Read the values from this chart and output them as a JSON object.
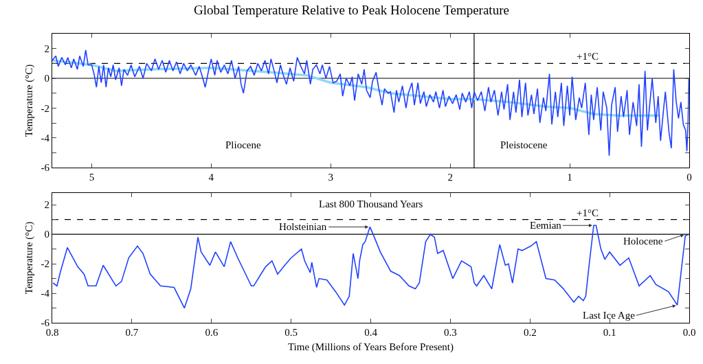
{
  "chart_data": [
    {
      "type": "line",
      "title": "Global Temperature Relative to Peak Holocene Temperature",
      "ylabel": "Temperature (°C)",
      "xlim": [
        5.33,
        0
      ],
      "xticks": [
        5,
        4,
        3,
        2,
        1,
        0
      ],
      "ylim": [
        -6,
        3
      ],
      "yticks": [
        -6,
        {
          "value": -5,
          "label": null
        },
        -4,
        {
          "value": -3,
          "label": null
        },
        -2,
        {
          "value": -1,
          "label": null
        },
        0,
        {
          "value": 1,
          "label": null
        },
        2
      ],
      "grid": false,
      "marker": "none",
      "line_style": "solid",
      "series": [
        {
          "color": "#2040ff",
          "x": [
            5.33,
            5.3,
            5.28,
            5.25,
            5.22,
            5.2,
            5.17,
            5.15,
            5.12,
            5.1,
            5.07,
            5.05,
            5.03,
            5.0,
            4.98,
            4.96,
            4.94,
            4.92,
            4.9,
            4.88,
            4.86,
            4.84,
            4.82,
            4.8,
            4.77,
            4.75,
            4.73,
            4.7,
            4.67,
            4.64,
            4.6,
            4.57,
            4.54,
            4.5,
            4.47,
            4.44,
            4.41,
            4.38,
            4.35,
            4.32,
            4.29,
            4.26,
            4.23,
            4.2,
            4.17,
            4.13,
            4.1,
            4.07,
            4.05,
            4.02,
            4.0,
            3.97,
            3.95,
            3.92,
            3.89,
            3.86,
            3.83,
            3.8,
            3.77,
            3.75,
            3.73,
            3.7,
            3.67,
            3.64,
            3.61,
            3.58,
            3.55,
            3.52,
            3.5,
            3.47,
            3.45,
            3.42,
            3.4,
            3.37,
            3.34,
            3.31,
            3.28,
            3.25,
            3.22,
            3.2,
            3.17,
            3.15,
            3.12,
            3.09,
            3.07,
            3.04,
            3.01,
            2.98,
            2.95,
            2.92,
            2.9,
            2.87,
            2.84,
            2.82,
            2.8,
            2.77,
            2.74,
            2.72,
            2.7,
            2.67,
            2.65,
            2.62,
            2.6,
            2.57,
            2.55,
            2.52,
            2.5,
            2.47,
            2.45,
            2.43,
            2.4,
            2.37,
            2.35,
            2.32,
            2.3,
            2.27,
            2.25,
            2.22,
            2.2,
            2.17,
            2.14,
            2.12,
            2.09,
            2.06,
            2.04,
            2.01,
            1.98,
            1.95,
            1.92,
            1.9,
            1.87,
            1.84,
            1.82,
            1.8,
            1.77,
            1.74,
            1.71,
            1.68,
            1.66,
            1.63,
            1.6,
            1.57,
            1.55,
            1.52,
            1.5,
            1.47,
            1.45,
            1.42,
            1.4,
            1.37,
            1.35,
            1.32,
            1.3,
            1.27,
            1.25,
            1.22,
            1.2,
            1.17,
            1.15,
            1.12,
            1.1,
            1.07,
            1.05,
            1.02,
            1.0,
            0.98,
            0.95,
            0.92,
            0.9,
            0.87,
            0.84,
            0.82,
            0.8,
            0.77,
            0.74,
            0.72,
            0.69,
            0.67,
            0.65,
            0.62,
            0.6,
            0.57,
            0.55,
            0.52,
            0.5,
            0.47,
            0.44,
            0.42,
            0.4,
            0.37,
            0.35,
            0.33,
            0.31,
            0.28,
            0.26,
            0.24,
            0.22,
            0.2,
            0.17,
            0.15,
            0.13,
            0.11,
            0.09,
            0.07,
            0.05,
            0.03,
            0.02,
            0.01,
            0.003
          ],
          "values": [
            1.2,
            1.5,
            0.8,
            1.4,
            0.9,
            1.4,
            0.7,
            1.3,
            0.6,
            1.5,
            0.8,
            1.9,
            0.9,
            0.9,
            0.3,
            -0.6,
            0.8,
            -0.3,
            0.9,
            -0.6,
            0.7,
            0.1,
            0.9,
            -0.1,
            0.7,
            -0.5,
            0.6,
            0.2,
            0.9,
            0.1,
            0.8,
            0.0,
            1.0,
            0.5,
            1.3,
            0.6,
            1.2,
            0.4,
            1.2,
            0.5,
            1.1,
            0.3,
            1.0,
            0.5,
            0.9,
            0.2,
            0.8,
            0.0,
            -0.6,
            0.6,
            1.3,
            0.2,
            1.2,
            0.4,
            0.9,
            0.3,
            1.2,
            0.0,
            0.8,
            -0.4,
            -1.0,
            0.5,
            0.8,
            0.2,
            1.0,
            0.5,
            1.2,
            0.3,
            1.3,
            0.4,
            -0.3,
            0.9,
            0.3,
            -0.4,
            0.7,
            -0.2,
            1.4,
            0.8,
            0.3,
            1.2,
            -0.4,
            0.6,
            0.9,
            0.3,
            0.9,
            0.0,
            0.8,
            -0.3,
            -0.2,
            0.3,
            -1.2,
            0.0,
            -0.5,
            0.1,
            -1.5,
            0.3,
            -0.4,
            0.6,
            -0.8,
            -1.3,
            -0.2,
            0.4,
            -0.6,
            -1.8,
            -0.7,
            -1.0,
            -0.9,
            -2.3,
            -0.8,
            -1.6,
            -0.5,
            -2.0,
            -1.0,
            -0.3,
            -1.8,
            -0.3,
            -1.7,
            -0.9,
            -1.9,
            -1.1,
            -1.6,
            -0.9,
            -2.0,
            -0.8,
            -1.9,
            -1.2,
            -1.7,
            -1.1,
            -2.1,
            -1.0,
            -1.6,
            -0.9,
            -2.0,
            -0.9,
            -1.5,
            -0.9,
            -2.2,
            -0.6,
            -1.6,
            -0.8,
            -2.5,
            -0.9,
            -2.1,
            -0.4,
            -2.8,
            -0.9,
            -2.3,
            -0.1,
            -2.6,
            -0.3,
            -2.5,
            -1.1,
            -2.4,
            -0.7,
            -3.0,
            -1.3,
            -2.2,
            0.3,
            -3.1,
            -0.9,
            -2.6,
            -0.3,
            -3.2,
            -0.5,
            -2.5,
            0.1,
            -2.8,
            -1.3,
            -2.0,
            -0.3,
            -3.8,
            -1.1,
            -2.8,
            -0.6,
            -3.5,
            -0.9,
            -2.0,
            -5.2,
            -1.8,
            -0.6,
            -3.6,
            -1.2,
            -2.6,
            -0.8,
            -3.8,
            -1.6,
            -3.2,
            -0.4,
            -4.6,
            0.5,
            -3.5,
            -1.7,
            0.0,
            -3.0,
            -1.2,
            -4.2,
            -2.5,
            -0.9,
            -3.6,
            -4.7,
            0.6,
            -1.5,
            -2.7,
            -1.6,
            -3.1,
            -3.5,
            -4.9,
            -3.0,
            0.0
          ]
        },
        {
          "color": "#8ed8f8",
          "x": [
            5.33,
            5.0,
            4.8,
            4.5,
            4.0,
            3.5,
            3.2,
            3.0,
            2.7,
            2.5,
            2.0,
            1.8,
            1.5,
            1.2,
            1.0,
            0.8,
            0.6,
            0.4,
            0.25
          ],
          "values": [
            1.2,
            0.9,
            0.5,
            0.6,
            0.7,
            0.4,
            0.2,
            -0.3,
            -0.6,
            -1.0,
            -1.4,
            -1.4,
            -1.6,
            -1.9,
            -2.0,
            -2.4,
            -2.5,
            -2.5,
            -2.5
          ]
        }
      ],
      "ref_lines": [
        {
          "axis": "y",
          "value": 0,
          "color": "#000000",
          "line_style": "solid"
        },
        {
          "axis": "y",
          "value": 1,
          "label": "+1°C",
          "color": "#000000",
          "line_style": "dashed"
        },
        {
          "axis": "x",
          "value": 1.8,
          "color": "#000000",
          "line_style": "solid"
        }
      ],
      "annotations": [
        "Pliocene",
        "Pleistocene"
      ]
    },
    {
      "type": "line",
      "xlabel": "Time (Millions of Years Before Present)",
      "ylabel": "Temperature (°C)",
      "xlim": [
        0.8,
        0
      ],
      "xticks": [
        0.8,
        0.7,
        0.6,
        0.5,
        0.4,
        0.3,
        0.2,
        0.1,
        {
          "value": 0,
          "label": "0.0"
        }
      ],
      "ylim": [
        -6,
        2.8
      ],
      "yticks": [
        -6,
        {
          "value": -5,
          "label": null
        },
        -4,
        {
          "value": -3,
          "label": null
        },
        -2,
        {
          "value": -1,
          "label": null
        },
        0,
        {
          "value": 1,
          "label": null
        },
        2
      ],
      "grid": false,
      "marker": "none",
      "line_style": "solid",
      "series": [
        {
          "color": "#2040ff",
          "x": [
            0.799,
            0.794,
            0.79,
            0.781,
            0.768,
            0.76,
            0.755,
            0.745,
            0.736,
            0.72,
            0.713,
            0.704,
            0.693,
            0.686,
            0.677,
            0.664,
            0.647,
            0.634,
            0.626,
            0.617,
            0.613,
            0.602,
            0.595,
            0.584,
            0.576,
            0.567,
            0.55,
            0.547,
            0.539,
            0.532,
            0.524,
            0.517,
            0.508,
            0.5,
            0.487,
            0.483,
            0.476,
            0.474,
            0.468,
            0.465,
            0.455,
            0.444,
            0.433,
            0.427,
            0.422,
            0.416,
            0.414,
            0.41,
            0.407,
            0.401,
            0.397,
            0.388,
            0.375,
            0.364,
            0.352,
            0.344,
            0.339,
            0.331,
            0.325,
            0.32,
            0.316,
            0.309,
            0.297,
            0.286,
            0.277,
            0.274,
            0.27,
            0.267,
            0.258,
            0.248,
            0.238,
            0.231,
            0.227,
            0.222,
            0.215,
            0.21,
            0.199,
            0.192,
            0.18,
            0.169,
            0.158,
            0.145,
            0.139,
            0.133,
            0.13,
            0.126,
            0.12,
            0.117,
            0.111,
            0.106,
            0.1,
            0.087,
            0.076,
            0.063,
            0.049,
            0.042,
            0.026,
            0.015,
            0.005,
            0.0
          ],
          "values": [
            -3.3,
            -3.5,
            -2.6,
            -0.9,
            -2.2,
            -2.7,
            -3.5,
            -3.5,
            -2.1,
            -3.5,
            -3.2,
            -1.6,
            -0.8,
            -1.3,
            -2.7,
            -3.5,
            -3.6,
            -5.0,
            -3.7,
            -0.2,
            -1.2,
            -2.1,
            -1.2,
            -2.2,
            -0.5,
            -1.6,
            -3.5,
            -3.5,
            -2.8,
            -2.2,
            -1.8,
            -2.7,
            -2.1,
            -1.6,
            -1.0,
            -1.8,
            -2.6,
            -1.9,
            -3.6,
            -3.0,
            -3.1,
            -3.9,
            -4.8,
            -4.2,
            -1.3,
            -3.0,
            -1.8,
            -0.7,
            -0.5,
            0.5,
            0.0,
            -1.2,
            -2.5,
            -2.8,
            -3.5,
            -3.7,
            -3.3,
            -0.5,
            0.0,
            -0.2,
            -1.3,
            -1.1,
            -3.0,
            -1.8,
            -2.1,
            -2.2,
            -3.3,
            -3.5,
            -2.8,
            -3.7,
            -0.7,
            -2.1,
            -2.0,
            -3.3,
            -1.0,
            -1.1,
            -0.8,
            -0.5,
            -3.0,
            -3.1,
            -3.7,
            -4.6,
            -4.2,
            -4.5,
            -4.2,
            -2.2,
            0.6,
            0.6,
            -1.0,
            -1.7,
            -1.2,
            -2.1,
            -1.6,
            -3.5,
            -2.8,
            -3.4,
            -3.9,
            -4.8,
            -0.1,
            0.0
          ]
        }
      ],
      "ref_lines": [
        {
          "axis": "y",
          "value": 0,
          "color": "#000000",
          "line_style": "solid"
        },
        {
          "axis": "y",
          "value": 1,
          "label": "+1°C",
          "color": "#000000",
          "line_style": "dashed"
        }
      ],
      "annotations": [
        "Last 800 Thousand Years",
        {
          "text": "Holsteinian",
          "x": 0.401,
          "y": 0.5
        },
        {
          "text": "Eemian",
          "x": 0.12,
          "y": 0.6
        },
        {
          "text": "Holocene",
          "x": 0.005,
          "y": 0.0
        },
        {
          "text": "Last Ice Age",
          "x": 0.015,
          "y": -4.8
        }
      ]
    }
  ]
}
